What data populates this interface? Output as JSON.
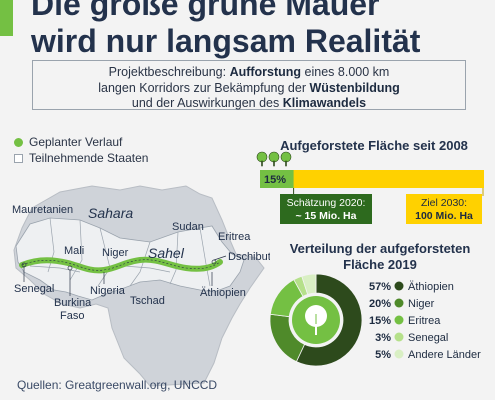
{
  "header": {
    "title_line1": "Die große grüne Mauer",
    "title_line2": "wird nur langsam Realität"
  },
  "description": {
    "p1": "Projektbeschreibung: ",
    "b1": "Aufforstung",
    "p2": " eines 8.000 km",
    "p3": "langen Korridors zur Bekämpfung der ",
    "b2": "Wüstenbildung",
    "p4": "und der Auswirkungen des ",
    "b3": "Klimawandels"
  },
  "legend": {
    "planned": "Geplanter Verlauf",
    "states": "Teilnehmende Staaten"
  },
  "map_labels": {
    "sahara": "Sahara",
    "sahel": "Sahel",
    "mauretanien": "Mauretanien",
    "mali": "Mali",
    "niger": "Niger",
    "sudan": "Sudan",
    "eritrea": "Eritrea",
    "dschibuti": "Dschibuti",
    "senegal": "Senegal",
    "burkina1": "Burkina",
    "burkina2": "Faso",
    "nigeria": "Nigeria",
    "tschad": "Tschad",
    "aethiopien": "Äthiopien"
  },
  "progress": {
    "title": "Aufgeforstete Fläche seit 2008",
    "pct_label": "15%",
    "estimate_line1": "Schätzung 2020:",
    "estimate_line2": "~ 15 Mio. Ha",
    "goal_line1": "Ziel 2030:",
    "goal_line2": "100 Mio. Ha"
  },
  "donut": {
    "title_line1": "Verteilung der aufgeforsteten",
    "title_line2": "Fläche 2019"
  },
  "colors": {
    "accent": "#74c043",
    "dark_green": "#2d4a1c",
    "yellow": "#ffd100",
    "navy": "#23324c"
  },
  "chart_data": [
    {
      "type": "bar",
      "title": "Aufgeforstete Fläche seit 2008",
      "categories": [
        "Schätzung 2020",
        "Ziel 2030"
      ],
      "values": [
        15,
        100
      ],
      "unit": "Mio. Ha",
      "progress_fraction": 0.15
    },
    {
      "type": "pie",
      "title": "Verteilung der aufgeforsteten Fläche 2019",
      "labels": [
        "Äthiopien",
        "Niger",
        "Eritrea",
        "Senegal",
        "Andere Länder"
      ],
      "values": [
        57,
        20,
        15,
        3,
        5
      ],
      "value_labels": [
        "57%",
        "20%",
        "15%",
        "3%",
        "5%"
      ],
      "colors": [
        "#2d4a1c",
        "#4f8a2a",
        "#74c043",
        "#b5e08a",
        "#d9efc4"
      ]
    }
  ],
  "source": "Quellen: Greatgreenwall.org, UNCCD"
}
